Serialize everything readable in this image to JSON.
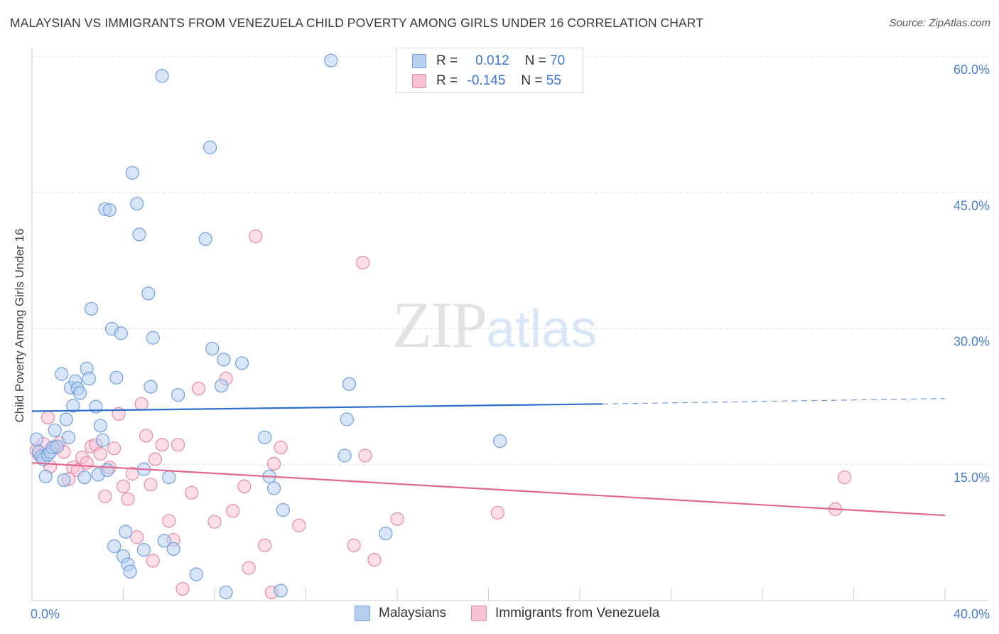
{
  "title": "MALAYSIAN VS IMMIGRANTS FROM VENEZUELA CHILD POVERTY AMONG GIRLS UNDER 16 CORRELATION CHART",
  "source": "Source: ZipAtlas.com",
  "watermark": {
    "zip": "ZIP",
    "atlas": "atlas"
  },
  "legend": {
    "r_label": "R =",
    "n_label": "N =",
    "rows": [
      {
        "r": "0.012",
        "n": "70"
      },
      {
        "r": "-0.145",
        "n": "55"
      }
    ]
  },
  "bottom_legend": [
    "Malaysians",
    "Immigrants from Venezuela"
  ],
  "colors": {
    "blue_fill": "#b8d0f0",
    "blue_stroke": "#6f9fdc",
    "blue_line": "#2f6fcc",
    "pink_fill": "#f7c2d2",
    "pink_stroke": "#e58aa6",
    "pink_line": "#e06890",
    "tick_text": "#4a7fd0",
    "grid": "#dddddd"
  },
  "chart_data": {
    "type": "scatter",
    "title": "MALAYSIAN VS IMMIGRANTS FROM VENEZUELA CHILD POVERTY AMONG GIRLS UNDER 16 CORRELATION CHART",
    "xlabel": "",
    "ylabel": "Child Poverty Among Girls Under 16",
    "xlim": [
      0,
      40
    ],
    "ylim": [
      0,
      60
    ],
    "x_tick_labels": [
      "0.0%",
      "40.0%"
    ],
    "y_ticks": [
      15,
      30,
      45,
      60
    ],
    "y_tick_labels": [
      "15.0%",
      "30.0%",
      "45.0%",
      "60.0%"
    ],
    "grid": true,
    "legend_position": "top-center",
    "series": [
      {
        "name": "Malaysians",
        "stats": {
          "R": 0.012,
          "N": 70
        },
        "trend": {
          "x0": 0,
          "y0": 20.9,
          "x1": 25,
          "y1": 21.7,
          "dashed_to": 40,
          "dashed_y": 22.3
        },
        "points": [
          [
            0.2,
            17.8
          ],
          [
            0.3,
            16.4
          ],
          [
            0.4,
            15.9
          ],
          [
            0.5,
            15.6
          ],
          [
            0.6,
            13.7
          ],
          [
            0.7,
            16.1
          ],
          [
            0.8,
            16.4
          ],
          [
            0.9,
            16.9
          ],
          [
            1.0,
            18.8
          ],
          [
            1.1,
            17.0
          ],
          [
            1.3,
            25.0
          ],
          [
            1.4,
            13.3
          ],
          [
            1.5,
            20.0
          ],
          [
            1.6,
            18.0
          ],
          [
            1.7,
            23.5
          ],
          [
            1.8,
            21.5
          ],
          [
            1.9,
            24.2
          ],
          [
            2.0,
            23.4
          ],
          [
            2.1,
            22.9
          ],
          [
            2.3,
            13.6
          ],
          [
            2.4,
            25.6
          ],
          [
            2.5,
            24.5
          ],
          [
            2.6,
            32.2
          ],
          [
            2.8,
            21.4
          ],
          [
            2.9,
            13.9
          ],
          [
            3.0,
            19.3
          ],
          [
            3.1,
            17.7
          ],
          [
            3.2,
            43.2
          ],
          [
            3.3,
            14.4
          ],
          [
            3.4,
            43.1
          ],
          [
            3.5,
            30.0
          ],
          [
            3.6,
            6.0
          ],
          [
            3.7,
            24.6
          ],
          [
            3.9,
            29.5
          ],
          [
            4.0,
            4.9
          ],
          [
            4.1,
            7.6
          ],
          [
            4.2,
            4.0
          ],
          [
            4.3,
            3.2
          ],
          [
            4.4,
            47.2
          ],
          [
            4.6,
            43.8
          ],
          [
            4.7,
            40.4
          ],
          [
            4.9,
            5.6
          ],
          [
            4.9,
            14.5
          ],
          [
            5.1,
            33.9
          ],
          [
            5.2,
            23.6
          ],
          [
            5.3,
            29.0
          ],
          [
            5.7,
            57.9
          ],
          [
            5.8,
            6.6
          ],
          [
            6.0,
            13.6
          ],
          [
            6.2,
            5.7
          ],
          [
            6.4,
            22.7
          ],
          [
            7.2,
            2.9
          ],
          [
            7.6,
            39.9
          ],
          [
            7.8,
            50.0
          ],
          [
            7.9,
            27.8
          ],
          [
            8.3,
            23.7
          ],
          [
            8.4,
            26.6
          ],
          [
            8.5,
            0.9
          ],
          [
            9.2,
            26.2
          ],
          [
            10.2,
            18.0
          ],
          [
            10.4,
            13.7
          ],
          [
            10.6,
            12.4
          ],
          [
            10.9,
            1.1
          ],
          [
            11.0,
            10.0
          ],
          [
            13.1,
            59.6
          ],
          [
            13.7,
            16.0
          ],
          [
            13.8,
            20.0
          ],
          [
            13.9,
            23.9
          ],
          [
            15.5,
            7.4
          ],
          [
            20.5,
            17.6
          ]
        ]
      },
      {
        "name": "Immigrants from Venezuela",
        "stats": {
          "R": -0.145,
          "N": 55
        },
        "trend": {
          "x0": 0,
          "y0": 15.2,
          "x1": 40,
          "y1": 9.4
        },
        "points": [
          [
            0.3,
            16.1
          ],
          [
            0.5,
            17.3
          ],
          [
            0.7,
            20.2
          ],
          [
            0.8,
            14.8
          ],
          [
            1.0,
            16.9
          ],
          [
            1.2,
            17.4
          ],
          [
            1.4,
            16.4
          ],
          [
            1.6,
            13.4
          ],
          [
            1.8,
            14.7
          ],
          [
            2.0,
            14.4
          ],
          [
            2.2,
            15.8
          ],
          [
            2.4,
            15.2
          ],
          [
            2.6,
            17.0
          ],
          [
            2.8,
            17.2
          ],
          [
            3.0,
            16.2
          ],
          [
            3.2,
            11.5
          ],
          [
            3.4,
            14.7
          ],
          [
            3.6,
            16.8
          ],
          [
            3.8,
            20.6
          ],
          [
            4.0,
            12.6
          ],
          [
            4.2,
            11.2
          ],
          [
            4.4,
            14.0
          ],
          [
            4.6,
            7.0
          ],
          [
            4.8,
            21.7
          ],
          [
            5.0,
            18.2
          ],
          [
            5.2,
            12.8
          ],
          [
            5.3,
            4.4
          ],
          [
            5.4,
            15.6
          ],
          [
            5.7,
            17.2
          ],
          [
            6.0,
            8.8
          ],
          [
            6.2,
            6.7
          ],
          [
            6.4,
            17.2
          ],
          [
            6.6,
            1.3
          ],
          [
            7.0,
            11.9
          ],
          [
            7.3,
            23.4
          ],
          [
            8.0,
            8.7
          ],
          [
            8.5,
            24.5
          ],
          [
            8.8,
            9.9
          ],
          [
            9.3,
            12.6
          ],
          [
            9.5,
            3.6
          ],
          [
            9.8,
            40.2
          ],
          [
            10.2,
            6.1
          ],
          [
            10.5,
            0.9
          ],
          [
            10.6,
            15.1
          ],
          [
            10.9,
            16.9
          ],
          [
            11.7,
            8.3
          ],
          [
            14.1,
            6.1
          ],
          [
            14.5,
            37.3
          ],
          [
            14.6,
            16.0
          ],
          [
            15.0,
            4.5
          ],
          [
            16.0,
            9.0
          ],
          [
            20.4,
            9.7
          ],
          [
            35.2,
            10.1
          ],
          [
            35.6,
            13.6
          ],
          [
            0.2,
            16.6
          ]
        ]
      }
    ]
  }
}
